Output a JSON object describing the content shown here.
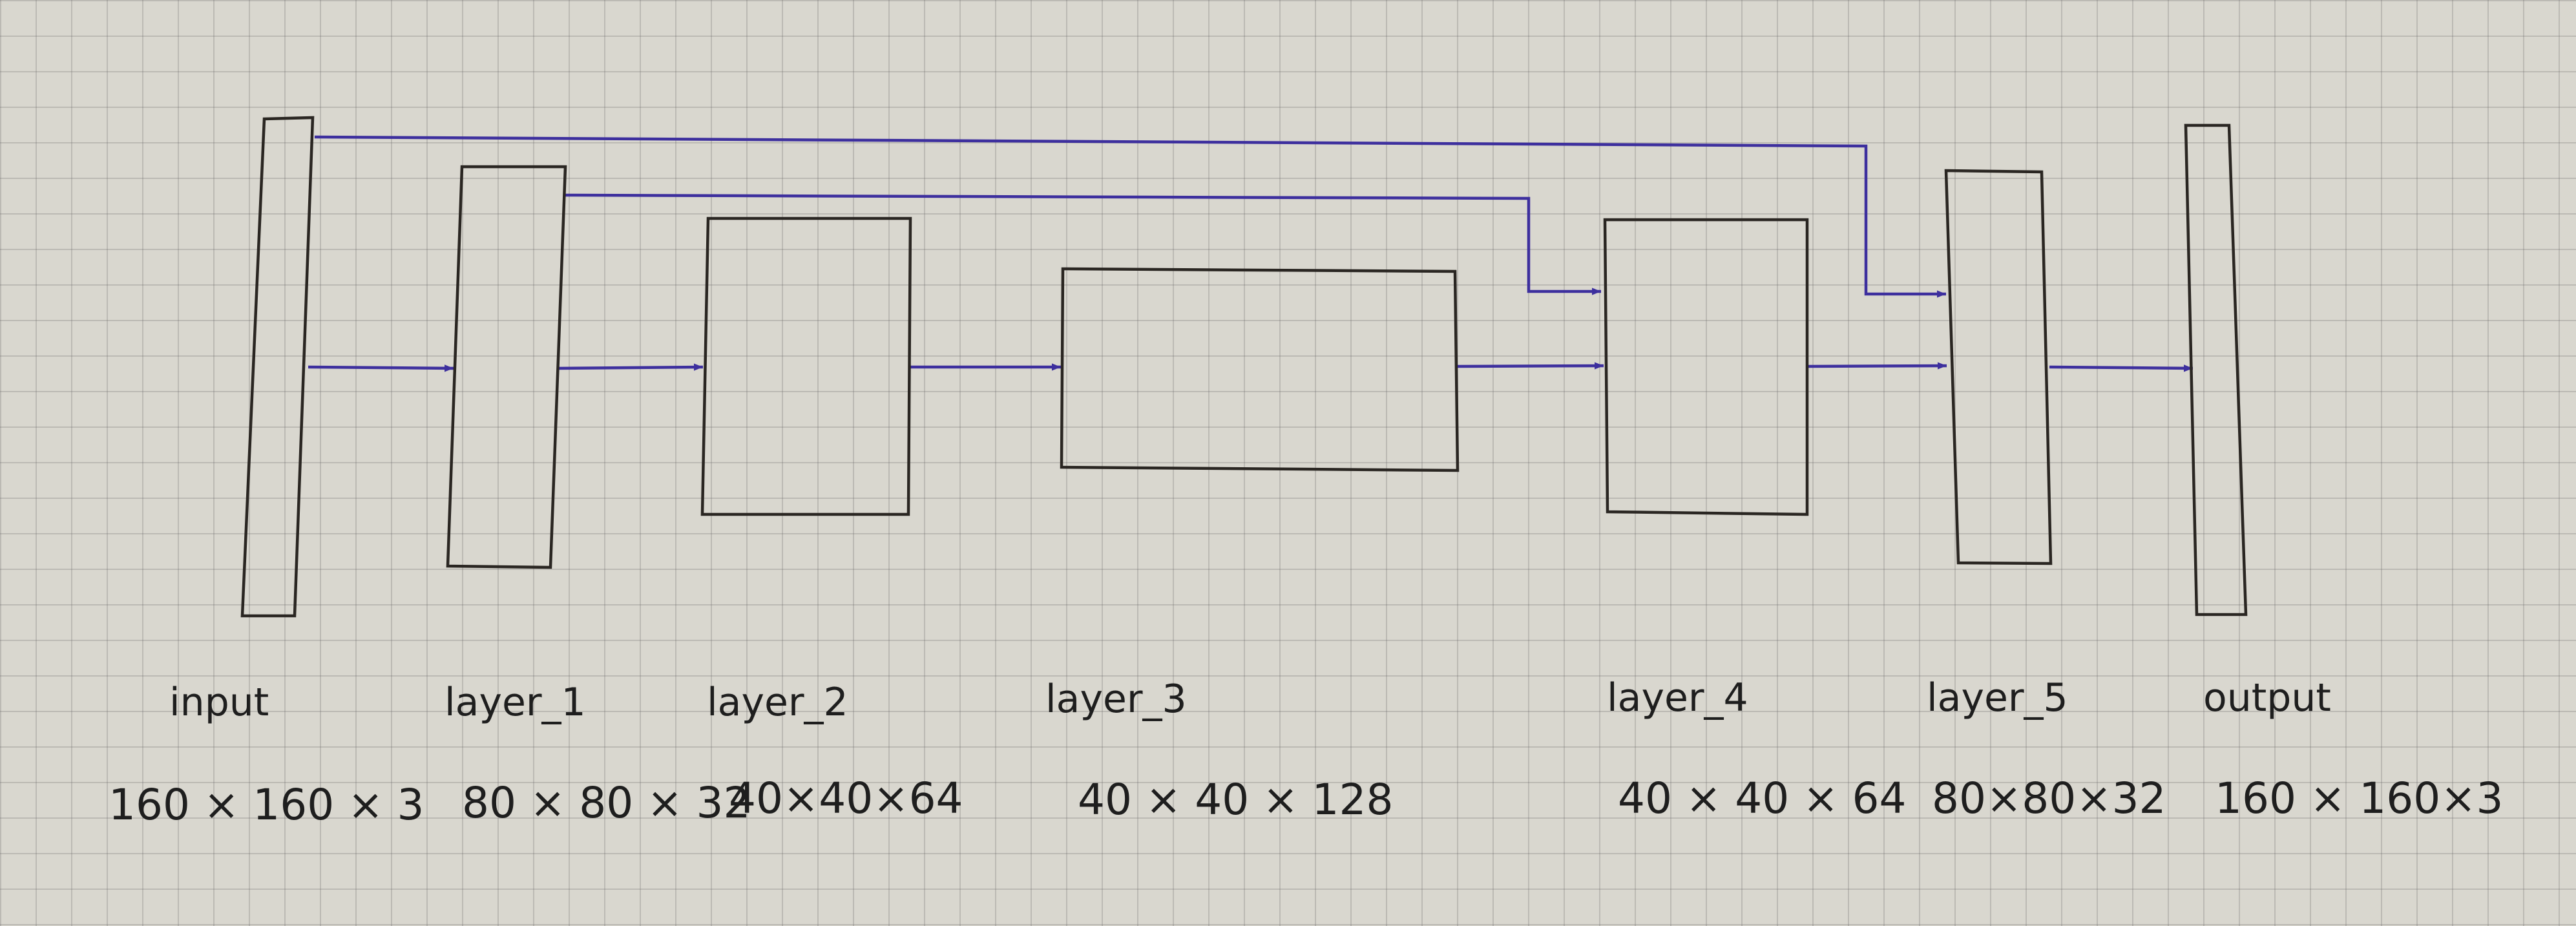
{
  "layers": [
    {
      "id": "input",
      "name": "input",
      "dims": "160 × 160 × 3"
    },
    {
      "id": "layer-1",
      "name": "layer_1",
      "dims": "80 × 80 × 32"
    },
    {
      "id": "layer-2",
      "name": "layer_2",
      "dims": "40×40×64"
    },
    {
      "id": "layer-3",
      "name": "layer_3",
      "dims": "40 × 40 × 128"
    },
    {
      "id": "layer-4",
      "name": "layer_4",
      "dims": "40 × 40 × 64"
    },
    {
      "id": "layer-5",
      "name": "layer_5",
      "dims": "80×80×32"
    },
    {
      "id": "output",
      "name": "output",
      "dims": "160 × 160×3"
    }
  ],
  "forward_connections": [
    [
      "input",
      "layer-1"
    ],
    [
      "layer-1",
      "layer-2"
    ],
    [
      "layer-2",
      "layer-3"
    ],
    [
      "layer-3",
      "layer-4"
    ],
    [
      "layer-4",
      "layer-5"
    ],
    [
      "layer-5",
      "output"
    ]
  ],
  "skip_connections": [
    [
      "input",
      "layer-5"
    ],
    [
      "layer-1",
      "layer-4"
    ]
  ],
  "colors": {
    "box": "#2a2622",
    "wire": "#3d2f9e",
    "paper": "#d9d7cf"
  }
}
